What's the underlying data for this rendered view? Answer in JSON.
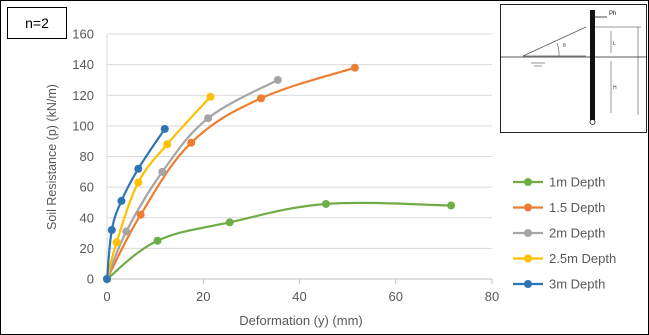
{
  "badge": "n=2",
  "chart_data": {
    "type": "line",
    "title": "",
    "xlabel": "Deformation (y) (mm)",
    "ylabel": "Soil Resistance (p) (kN/m)",
    "xlim": [
      0,
      80
    ],
    "ylim": [
      0,
      160
    ],
    "xticks": [
      0,
      20,
      40,
      60,
      80
    ],
    "yticks": [
      0,
      20,
      40,
      60,
      80,
      100,
      120,
      140,
      160
    ],
    "grid": "horizontal",
    "legend_position": "right",
    "series": [
      {
        "name": "1m Depth",
        "color": "#70ad47",
        "points": [
          [
            0,
            0
          ],
          [
            10.5,
            25
          ],
          [
            25.5,
            37
          ],
          [
            45.5,
            49
          ],
          [
            71.5,
            48
          ]
        ]
      },
      {
        "name": "1.5 Depth",
        "color": "#ed7d31",
        "points": [
          [
            0,
            0
          ],
          [
            7,
            42
          ],
          [
            17.5,
            89
          ],
          [
            32,
            118
          ],
          [
            51.5,
            138
          ]
        ]
      },
      {
        "name": "2m Depth",
        "color": "#a5a5a5",
        "points": [
          [
            0,
            0
          ],
          [
            4,
            31
          ],
          [
            11.5,
            70
          ],
          [
            21,
            105
          ],
          [
            35.5,
            130
          ]
        ]
      },
      {
        "name": "2.5m Depth",
        "color": "#ffc000",
        "points": [
          [
            0,
            0
          ],
          [
            2,
            24
          ],
          [
            6.5,
            63
          ],
          [
            12.5,
            88
          ],
          [
            21.5,
            119
          ]
        ]
      },
      {
        "name": "3m Depth",
        "color": "#2e75b6",
        "points": [
          [
            0,
            0
          ],
          [
            1,
            32
          ],
          [
            3,
            51
          ],
          [
            6.5,
            72
          ],
          [
            12,
            98
          ]
        ]
      }
    ]
  },
  "inset": {
    "labels": {
      "load": "Ph",
      "height": "L",
      "embed": "H",
      "angle": "θ"
    }
  }
}
